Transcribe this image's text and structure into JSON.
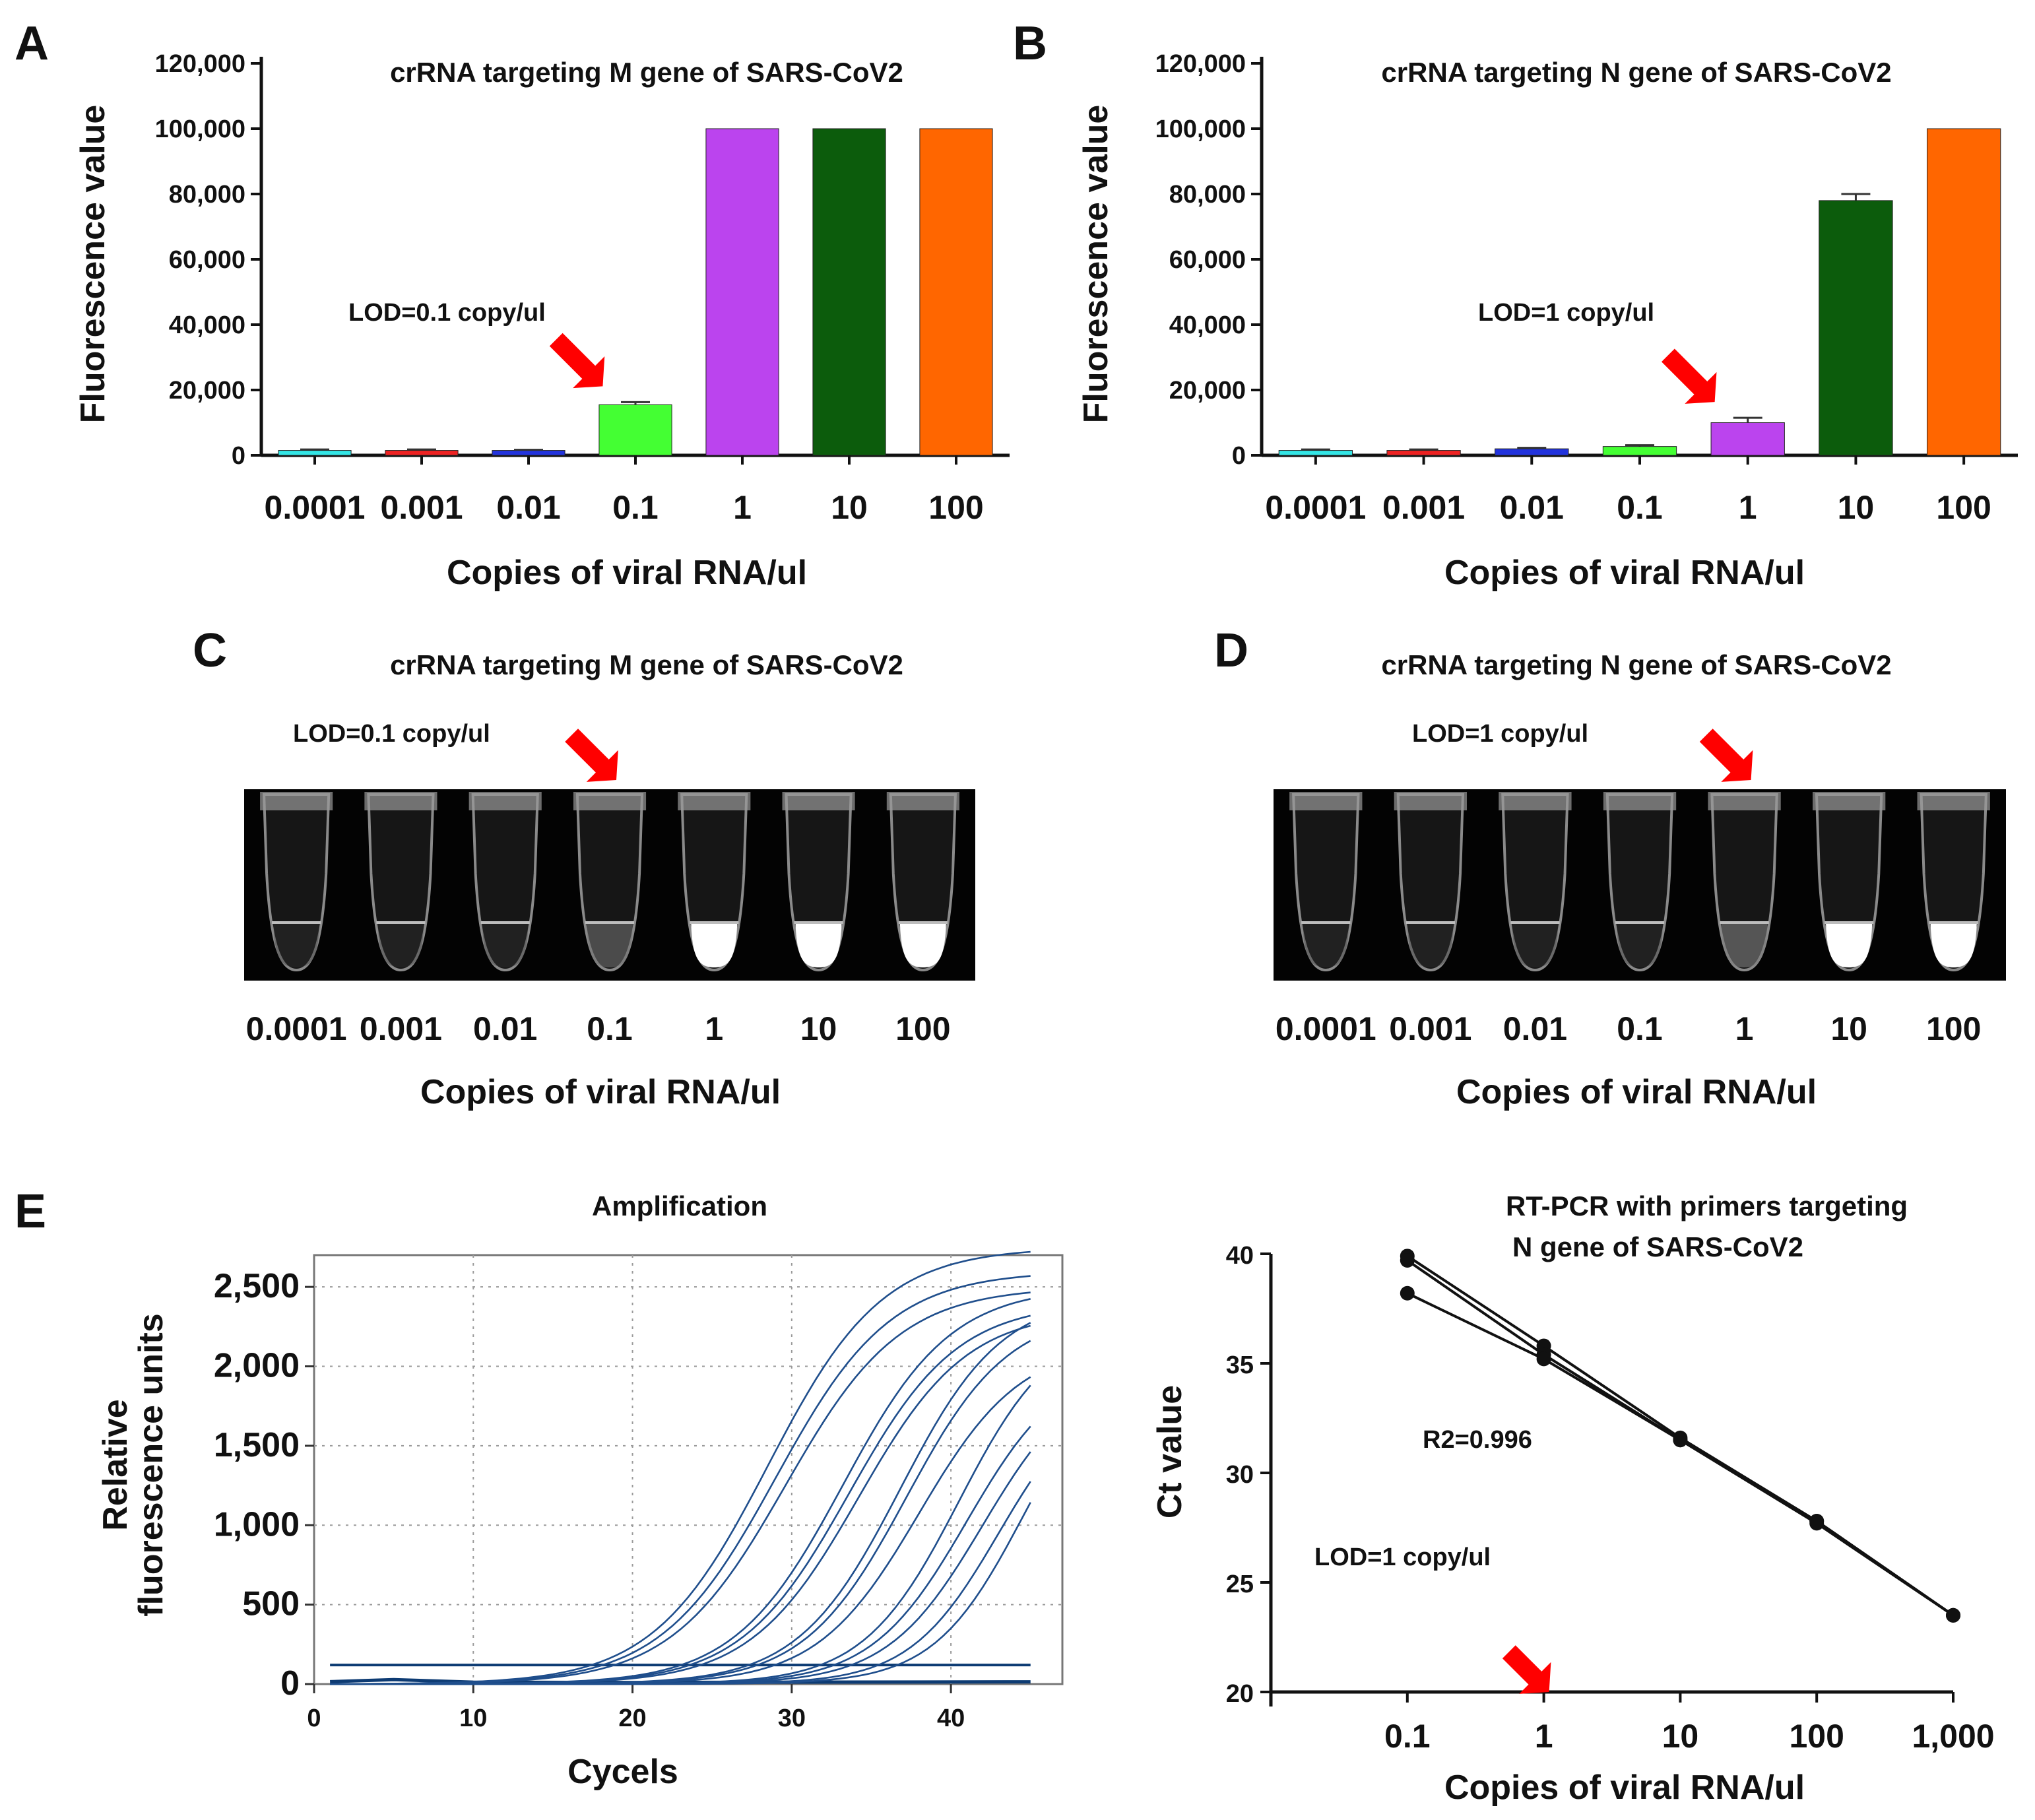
{
  "colors": {
    "arrow": "#ff0000",
    "rtpcr_line": "#1f4e8c",
    "threshold": "#0d3b73",
    "axis": "#111111"
  },
  "chart_data": [
    {
      "panel": "A",
      "type": "bar",
      "title": "crRNA targeting M gene of SARS-CoV2",
      "xlabel": "Copies of viral RNA/ul",
      "ylabel": "Fluorescence value",
      "ylim": [
        0,
        120000
      ],
      "yticks": [
        "0",
        "20,000",
        "40,000",
        "60,000",
        "80,000",
        "100,000",
        "120,000"
      ],
      "categories": [
        "0.0001",
        "0.001",
        "0.01",
        "0.1",
        "1",
        "10",
        "100"
      ],
      "values": [
        1500,
        1500,
        1500,
        15500,
        100000,
        100000,
        100000
      ],
      "errors": [
        300,
        300,
        200,
        800,
        0,
        0,
        0
      ],
      "colors": [
        "#33e6e6",
        "#ee2222",
        "#2233dd",
        "#44ff33",
        "#bb44ee",
        "#0c5c0c",
        "#ff6600"
      ],
      "annotation": "LOD=0.1 copy/ul",
      "lod_index": 3
    },
    {
      "panel": "B",
      "type": "bar",
      "title": "crRNA targeting N gene of SARS-CoV2",
      "xlabel": "Copies of viral RNA/ul",
      "ylabel": "Fluorescence value",
      "ylim": [
        0,
        120000
      ],
      "yticks": [
        "0",
        "20,000",
        "40,000",
        "60,000",
        "80,000",
        "100,000",
        "120,000"
      ],
      "categories": [
        "0.0001",
        "0.001",
        "0.01",
        "0.1",
        "1",
        "10",
        "100"
      ],
      "values": [
        1500,
        1500,
        2000,
        2700,
        10000,
        78000,
        100000
      ],
      "errors": [
        300,
        300,
        300,
        400,
        1500,
        2000,
        0
      ],
      "colors": [
        "#33e6e6",
        "#ee2222",
        "#2233dd",
        "#44ff33",
        "#bb44ee",
        "#0c5c0c",
        "#ff6600"
      ],
      "annotation": "LOD=1 copy/ul",
      "lod_index": 4
    },
    {
      "panel": "E",
      "type": "line",
      "title": "Amplification",
      "xlabel": "Cycels",
      "ylabel_lines": [
        "Relative",
        "fluorescence units"
      ],
      "xlim": [
        0,
        47
      ],
      "ylim": [
        0,
        2700
      ],
      "xticks": [
        "0",
        "10",
        "20",
        "30",
        "40"
      ],
      "yticks": [
        "0",
        "500",
        "1,000",
        "1,500",
        "2,000",
        "2,500"
      ],
      "threshold": 120,
      "series": [
        {
          "name": "c1",
          "midpoint": 28.5,
          "plateau": 2750,
          "slope": 3.6
        },
        {
          "name": "c2",
          "midpoint": 29.0,
          "plateau": 2600,
          "slope": 3.6
        },
        {
          "name": "c3",
          "midpoint": 29.6,
          "plateau": 2500,
          "slope": 3.6
        },
        {
          "name": "c4",
          "midpoint": 33.2,
          "plateau": 2500,
          "slope": 3.4
        },
        {
          "name": "c5",
          "midpoint": 33.6,
          "plateau": 2400,
          "slope": 3.4
        },
        {
          "name": "c6",
          "midpoint": 34.2,
          "plateau": 2350,
          "slope": 3.4
        },
        {
          "name": "c7",
          "midpoint": 36.8,
          "plateau": 2450,
          "slope": 3.2
        },
        {
          "name": "c8",
          "midpoint": 37.2,
          "plateau": 2350,
          "slope": 3.2
        },
        {
          "name": "c9",
          "midpoint": 38.0,
          "plateau": 2150,
          "slope": 3.2
        },
        {
          "name": "c10",
          "midpoint": 40.5,
          "plateau": 2300,
          "slope": 3.0
        },
        {
          "name": "c11",
          "midpoint": 41.0,
          "plateau": 2050,
          "slope": 3.0
        },
        {
          "name": "c12",
          "midpoint": 42.0,
          "plateau": 2000,
          "slope": 3.0
        },
        {
          "name": "c13",
          "midpoint": 43.0,
          "plateau": 1900,
          "slope": 2.8
        },
        {
          "name": "c14",
          "midpoint": 44.5,
          "plateau": 2100,
          "slope": 2.8
        }
      ]
    },
    {
      "panel": "E-right",
      "type": "line",
      "title_lines": [
        "RT-PCR with primers targeting",
        "N gene of SARS-CoV2"
      ],
      "xlabel": "Copies of viral RNA/ul",
      "ylabel": "Ct value",
      "xscale": "log",
      "xlim": [
        0.01,
        1000
      ],
      "ylim": [
        20,
        40
      ],
      "xticks": [
        0.1,
        1,
        10,
        100,
        1000
      ],
      "xtick_labels": [
        "0.1",
        "1",
        "10",
        "100",
        "1,000"
      ],
      "yticks": [
        "20",
        "25",
        "30",
        "35",
        "40"
      ],
      "annotation_r2": "R2=0.996",
      "annotation_lod": "LOD=1 copy/ul",
      "series": [
        {
          "name": "rep1",
          "x": [
            0.1,
            1,
            10,
            100,
            1000
          ],
          "y": [
            39.9,
            35.8,
            31.6,
            27.8,
            23.5
          ]
        },
        {
          "name": "rep2",
          "x": [
            0.1,
            1,
            10,
            100,
            1000
          ],
          "y": [
            39.7,
            35.4,
            31.5,
            27.8,
            23.5
          ]
        },
        {
          "name": "rep3",
          "x": [
            0.1,
            1,
            10,
            100,
            1000
          ],
          "y": [
            38.2,
            35.2,
            31.5,
            27.7,
            23.5
          ]
        }
      ]
    }
  ],
  "gels": [
    {
      "panel": "C",
      "title": "crRNA targeting M gene of SARS-CoV2",
      "annotation": "LOD=0.1 copy/ul",
      "categories": [
        "0.0001",
        "0.001",
        "0.01",
        "0.1",
        "1",
        "10",
        "100"
      ],
      "brightness": [
        0.05,
        0.05,
        0.05,
        0.35,
        1.0,
        1.0,
        1.0
      ],
      "xlabel": "Copies of viral RNA/ul",
      "lod_index": 3
    },
    {
      "panel": "D",
      "title": "crRNA targeting N gene of SARS-CoV2",
      "annotation": "LOD=1 copy/ul",
      "categories": [
        "0.0001",
        "0.001",
        "0.01",
        "0.1",
        "1",
        "10",
        "100"
      ],
      "brightness": [
        0.05,
        0.05,
        0.05,
        0.05,
        0.4,
        1.0,
        1.0
      ],
      "xlabel": "Copies of viral RNA/ul",
      "lod_index": 4
    }
  ],
  "panel_labels": [
    "A",
    "B",
    "C",
    "D",
    "E"
  ]
}
